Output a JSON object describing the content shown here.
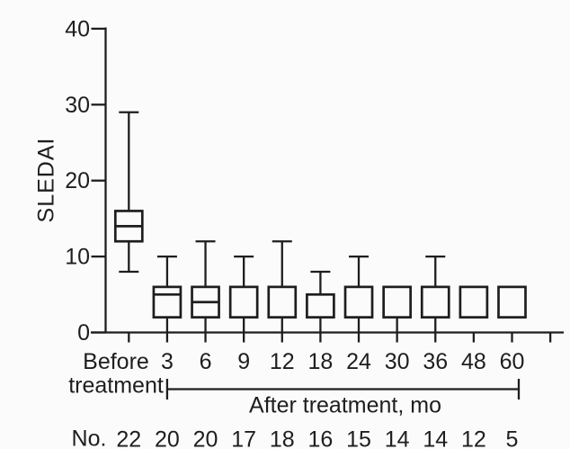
{
  "chart_data": {
    "type": "box",
    "title": "",
    "ylabel": "SLEDAI",
    "ylim": [
      0,
      40
    ],
    "yticks": [
      0,
      10,
      20,
      30,
      40
    ],
    "grid": false,
    "x_axis_note": "After treatment, mo",
    "n_row_label": "No.",
    "categories": [
      "Before treatment",
      "3",
      "6",
      "9",
      "12",
      "18",
      "24",
      "30",
      "36",
      "48",
      "60"
    ],
    "counts": [
      22,
      20,
      20,
      17,
      18,
      16,
      15,
      14,
      14,
      12,
      5
    ],
    "columns": [
      {
        "label": "Before treatment",
        "label_lines": [
          "Before",
          "treatment"
        ],
        "n": 22,
        "whisker_low": 8,
        "low_cap": true,
        "q1": 12,
        "median": 14,
        "q3": 16,
        "whisker_high": 29
      },
      {
        "label": "3",
        "n": 20,
        "whisker_low": 0,
        "low_cap": false,
        "q1": 2,
        "median": 5,
        "q3": 6,
        "whisker_high": 10
      },
      {
        "label": "6",
        "n": 20,
        "whisker_low": 0,
        "low_cap": false,
        "q1": 2,
        "median": 4,
        "q3": 6,
        "whisker_high": 12
      },
      {
        "label": "9",
        "n": 17,
        "whisker_low": 0,
        "low_cap": false,
        "q1": 2,
        "median": null,
        "q3": 6,
        "whisker_high": 10
      },
      {
        "label": "12",
        "n": 18,
        "whisker_low": 0,
        "low_cap": false,
        "q1": 2,
        "median": null,
        "q3": 6,
        "whisker_high": 12
      },
      {
        "label": "18",
        "n": 16,
        "whisker_low": 0,
        "low_cap": false,
        "q1": 2,
        "median": null,
        "q3": 5,
        "whisker_high": 8
      },
      {
        "label": "24",
        "n": 15,
        "whisker_low": 0,
        "low_cap": false,
        "q1": 2,
        "median": null,
        "q3": 6,
        "whisker_high": 10
      },
      {
        "label": "30",
        "n": 14,
        "whisker_low": 0,
        "low_cap": false,
        "q1": 2,
        "median": null,
        "q3": 6,
        "whisker_high": null
      },
      {
        "label": "36",
        "n": 14,
        "whisker_low": 0,
        "low_cap": false,
        "q1": 2,
        "median": null,
        "q3": 6,
        "whisker_high": 10
      },
      {
        "label": "48",
        "n": 12,
        "whisker_low": null,
        "low_cap": false,
        "q1": 2,
        "median": null,
        "q3": 6,
        "whisker_high": null
      },
      {
        "label": "60",
        "n": 5,
        "whisker_low": null,
        "low_cap": false,
        "q1": 2,
        "median": null,
        "q3": 6,
        "whisker_high": null
      }
    ],
    "colors": {
      "line": "#1e1e1e",
      "background": "#fbfbfb"
    }
  }
}
